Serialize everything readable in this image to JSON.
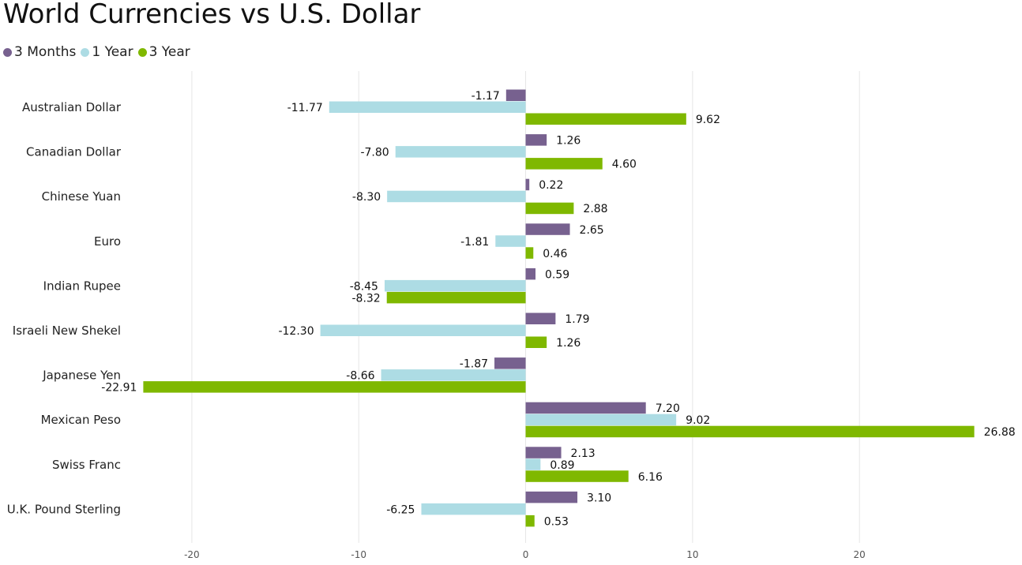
{
  "chart_data": {
    "type": "bar",
    "orientation": "horizontal",
    "title": "World Currencies vs U.S. Dollar",
    "xlabel": "",
    "ylabel": "",
    "categories": [
      "Australian Dollar",
      "Canadian Dollar",
      "Chinese Yuan",
      "Euro",
      "Indian Rupee",
      "Israeli New Shekel",
      "Japanese Yen",
      "Mexican Peso",
      "Swiss Franc",
      "U.K. Pound Sterling"
    ],
    "series": [
      {
        "name": "3 Months",
        "color": "#77618F",
        "values": [
          -1.17,
          1.26,
          0.22,
          2.65,
          0.59,
          1.79,
          -1.87,
          7.2,
          2.13,
          3.1
        ],
        "labels": [
          "-1.17",
          "1.26",
          "0.22",
          "2.65",
          "0.59",
          "1.79",
          "-1.87",
          "7.20",
          "2.13",
          "3.10"
        ]
      },
      {
        "name": "1 Year",
        "color": "#ADDCE4",
        "values": [
          -11.77,
          -7.8,
          -8.3,
          -1.81,
          -8.45,
          -12.3,
          -8.66,
          9.02,
          0.89,
          -6.25
        ],
        "labels": [
          "-11.77",
          "-7.80",
          "-8.30",
          "-1.81",
          "-8.45",
          "-12.30",
          "-8.66",
          "9.02",
          "0.89",
          "-6.25"
        ]
      },
      {
        "name": "3 Year",
        "color": "#7FB800",
        "values": [
          9.62,
          4.6,
          2.88,
          0.46,
          -8.32,
          1.26,
          -22.91,
          26.88,
          6.16,
          0.53
        ],
        "labels": [
          "9.62",
          "4.60",
          "2.88",
          "0.46",
          "-8.32",
          "1.26",
          "-22.91",
          "26.88",
          "6.16",
          "0.53"
        ]
      }
    ],
    "xlim": [
      -23.45,
      29.55
    ],
    "xticks": [
      -20,
      -10,
      0,
      10,
      20
    ],
    "xtick_labels": [
      "-20",
      "-10",
      "0",
      "10",
      "20"
    ],
    "grid": true,
    "legend_position": "top-left"
  }
}
